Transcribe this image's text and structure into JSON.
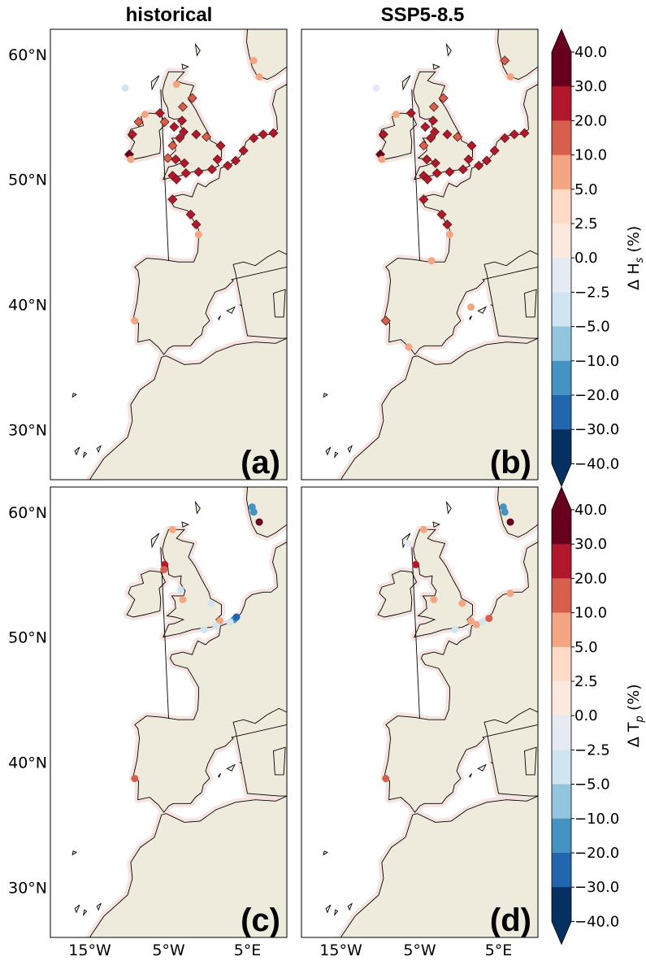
{
  "titles": {
    "historical": "historical",
    "ssp585": "SSP5-8.5"
  },
  "lat_ticks": [
    "60°N",
    "50°N",
    "40°N",
    "30°N"
  ],
  "lon_ticks": [
    "15°W",
    "5°W",
    "5°E"
  ],
  "panels": [
    {
      "label": "(a)",
      "variable": "Hs",
      "scenario": "historical"
    },
    {
      "label": "(b)",
      "variable": "Hs",
      "scenario": "SSP5-8.5"
    },
    {
      "label": "(c)",
      "variable": "Tp",
      "scenario": "historical"
    },
    {
      "label": "(d)",
      "variable": "Tp",
      "scenario": "SSP5-8.5"
    }
  ],
  "colorbars": {
    "hs_label": "Δ H",
    "hs_sub": "s",
    "hs_unit": " (%)",
    "tp_label": "Δ T",
    "tp_sub": "p",
    "tp_unit": " (%)",
    "ticks": [
      "40.0",
      "30.0",
      "20.0",
      "10.0",
      "5.0",
      "2.5",
      "0.0",
      "−2.5",
      "−5.0",
      "−10.0",
      "−20.0",
      "−30.0",
      "−40.0"
    ],
    "colors_top_to_bottom": [
      "#67001f",
      "#b2182b",
      "#d6604d",
      "#f4a582",
      "#fddbc7",
      "#fbe9e0",
      "#e6eaf2",
      "#d1e5f0",
      "#92c5de",
      "#4393c3",
      "#2166ac",
      "#053061"
    ],
    "extend_max_color": "#67001f",
    "extend_min_color": "#053061"
  },
  "colors": {
    "land": "#efebdc",
    "ocean": "#ffffff",
    "coast": "#000000"
  },
  "map_extent": {
    "lon": [
      -20,
      10
    ],
    "lat": [
      26,
      62
    ]
  },
  "chart_data": {
    "type": "scatter",
    "description_units": "lon (deg E), lat (deg N), change (%)",
    "hs_historical": [
      [
        -10.5,
        57.3,
        -4
      ],
      [
        -8.0,
        55.2,
        7
      ],
      [
        -8.8,
        54.6,
        12
      ],
      [
        -9.6,
        53.6,
        25
      ],
      [
        -10.0,
        52.0,
        35
      ],
      [
        -9.8,
        51.6,
        7
      ],
      [
        -6.1,
        55.3,
        20
      ],
      [
        -5.5,
        54.6,
        15
      ],
      [
        -4.3,
        54.2,
        25
      ],
      [
        -3.3,
        54.7,
        25
      ],
      [
        -3.1,
        53.8,
        25
      ],
      [
        -3.6,
        53.3,
        20
      ],
      [
        -4.5,
        52.7,
        15
      ],
      [
        -4.1,
        51.6,
        20
      ],
      [
        -5.1,
        51.7,
        10
      ],
      [
        -3.0,
        51.3,
        20
      ],
      [
        -1.5,
        53.6,
        25
      ],
      [
        -0.2,
        53.4,
        15
      ],
      [
        1.6,
        52.7,
        25
      ],
      [
        1.2,
        51.6,
        20
      ],
      [
        0.5,
        50.8,
        20
      ],
      [
        -1.2,
        50.6,
        25
      ],
      [
        -2.8,
        50.5,
        20
      ],
      [
        -4.5,
        50.3,
        20
      ],
      [
        -4.0,
        50.0,
        25
      ],
      [
        2.5,
        51.1,
        25
      ],
      [
        3.5,
        51.5,
        20
      ],
      [
        4.5,
        52.3,
        25
      ],
      [
        5.8,
        53.3,
        25
      ],
      [
        7.0,
        53.6,
        25
      ],
      [
        8.3,
        53.7,
        20
      ],
      [
        -4.5,
        48.4,
        25
      ],
      [
        -2.2,
        47.2,
        25
      ],
      [
        -1.5,
        46.4,
        20
      ],
      [
        -1.2,
        45.6,
        7
      ],
      [
        -3.2,
        55.8,
        10
      ],
      [
        -2.0,
        56.5,
        10
      ],
      [
        -4.0,
        57.6,
        7
      ],
      [
        5.8,
        59.5,
        5
      ],
      [
        6.5,
        58.2,
        5
      ],
      [
        -9.3,
        38.7,
        5
      ]
    ],
    "hs_ssp585": [
      [
        -10.5,
        57.3,
        -1
      ],
      [
        -8.0,
        55.2,
        7
      ],
      [
        -9.6,
        53.6,
        25
      ],
      [
        -10.0,
        52.0,
        35
      ],
      [
        -9.8,
        51.6,
        5
      ],
      [
        -6.1,
        55.3,
        20
      ],
      [
        -4.3,
        54.2,
        25
      ],
      [
        -3.3,
        54.7,
        25
      ],
      [
        -3.1,
        53.8,
        25
      ],
      [
        -3.6,
        53.3,
        20
      ],
      [
        -4.5,
        52.7,
        15
      ],
      [
        -4.1,
        51.6,
        20
      ],
      [
        -3.0,
        51.3,
        20
      ],
      [
        -1.5,
        53.6,
        25
      ],
      [
        -0.2,
        53.4,
        15
      ],
      [
        1.6,
        52.7,
        25
      ],
      [
        1.2,
        51.6,
        20
      ],
      [
        0.5,
        50.8,
        20
      ],
      [
        -1.2,
        50.6,
        25
      ],
      [
        -2.8,
        50.5,
        20
      ],
      [
        -4.5,
        50.3,
        20
      ],
      [
        -4.0,
        50.0,
        25
      ],
      [
        2.5,
        51.1,
        25
      ],
      [
        3.5,
        51.5,
        20
      ],
      [
        4.5,
        52.3,
        25
      ],
      [
        5.8,
        53.3,
        25
      ],
      [
        7.0,
        53.6,
        25
      ],
      [
        8.3,
        53.7,
        20
      ],
      [
        -4.5,
        48.4,
        25
      ],
      [
        -2.2,
        47.2,
        25
      ],
      [
        -1.5,
        46.4,
        20
      ],
      [
        -1.2,
        45.6,
        7
      ],
      [
        -3.2,
        55.8,
        10
      ],
      [
        -2.0,
        56.5,
        10
      ],
      [
        5.8,
        59.5,
        10
      ],
      [
        6.5,
        58.2,
        7
      ],
      [
        -9.3,
        38.7,
        15
      ],
      [
        -6.4,
        36.6,
        5
      ],
      [
        -3.5,
        43.5,
        5
      ],
      [
        1.5,
        39.8,
        5
      ]
    ],
    "tp_historical": [
      [
        5.6,
        60.4,
        -15
      ],
      [
        5.8,
        60.0,
        -20
      ],
      [
        6.5,
        59.2,
        35
      ],
      [
        -4.5,
        58.6,
        5
      ],
      [
        -5.5,
        55.8,
        20
      ],
      [
        -5.6,
        55.4,
        15
      ],
      [
        -3.5,
        53.8,
        -5
      ],
      [
        -3.2,
        53.0,
        5
      ],
      [
        0.4,
        52.7,
        -5
      ],
      [
        1.5,
        51.3,
        5
      ],
      [
        -0.5,
        50.6,
        -5
      ],
      [
        1.0,
        50.9,
        -5
      ],
      [
        3.3,
        51.4,
        -20
      ],
      [
        2.8,
        51.2,
        -5
      ],
      [
        3.6,
        51.6,
        -30
      ],
      [
        -9.3,
        38.7,
        15
      ]
    ],
    "tp_ssp585": [
      [
        5.6,
        60.4,
        -15
      ],
      [
        5.8,
        60.0,
        -20
      ],
      [
        6.5,
        59.2,
        35
      ],
      [
        -4.5,
        58.6,
        5
      ],
      [
        -5.5,
        55.8,
        20
      ],
      [
        -6.5,
        57.5,
        -2.5
      ],
      [
        -3.2,
        53.0,
        5
      ],
      [
        0.4,
        52.7,
        5
      ],
      [
        1.5,
        51.3,
        5
      ],
      [
        -0.5,
        50.6,
        -5
      ],
      [
        2.2,
        51.0,
        5
      ],
      [
        3.0,
        51.2,
        -5
      ],
      [
        3.8,
        51.5,
        15
      ],
      [
        6.5,
        53.5,
        5
      ],
      [
        -9.3,
        38.7,
        15
      ]
    ]
  }
}
